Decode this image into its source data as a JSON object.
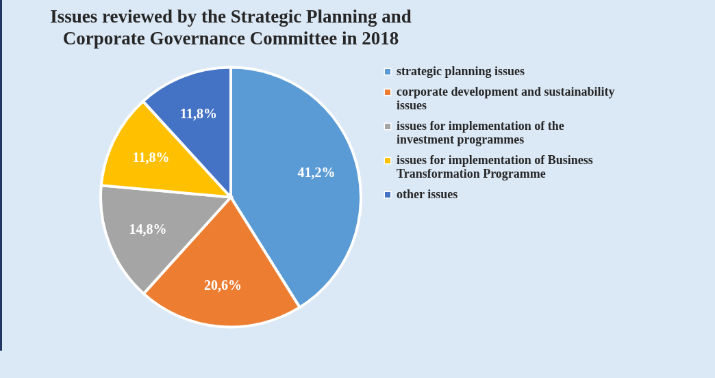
{
  "chart_data": {
    "type": "pie",
    "title": "Issues reviewed by the Strategic Planning and Corporate Governance Committee in 2018",
    "categories": [
      "strategic planning issues",
      "corporate development and sustainability issues",
      "issues for implementation of the investment programmes",
      "issues for implementation of Business Transformation Programme",
      "other issues"
    ],
    "values": [
      41.2,
      20.6,
      14.8,
      11.8,
      11.8
    ],
    "value_labels": [
      "41,2%",
      "20,6%",
      "14,8%",
      "11,8%",
      "11,8%"
    ],
    "colors": [
      "#5b9bd5",
      "#ed7d31",
      "#a5a5a5",
      "#ffc000",
      "#4472c4"
    ],
    "legend": "right"
  }
}
